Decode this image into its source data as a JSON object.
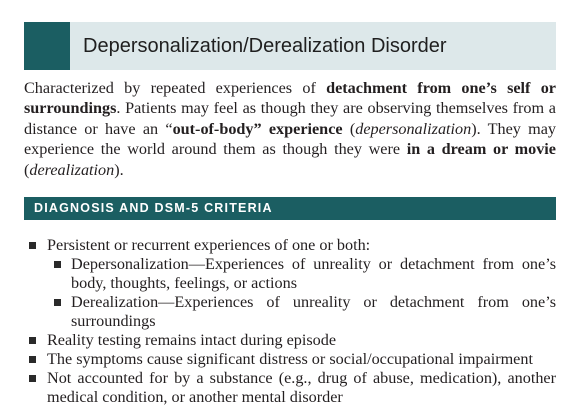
{
  "title": "Depersonalization/Derealization Disorder",
  "intro": {
    "p1": "Characterized by repeated experiences of ",
    "b1": "detachment from one’s self or surroundings",
    "p2": ". Patients may feel as though they are observing themselves from a distance or have an “",
    "b2": "out-of-body” experience",
    "p3": " (",
    "i1": "depersonalization",
    "p4": "). They may experience the world around them as though they were ",
    "b3": "in a dream or movie",
    "p5": " (",
    "i2": "derealization",
    "p6": ")."
  },
  "section_header": "DIAGNOSIS AND DSM-5 CRITERIA",
  "criteria": {
    "item1": "Persistent or recurrent experiences of one or both:",
    "sub1": "Depersonalization—Experiences of unreality or detachment from one’s body, thoughts, feelings, or actions",
    "sub2": "Derealization—Experiences of unreality or detachment from one’s surroundings",
    "item2": "Reality testing remains intact during episode",
    "item3": "The symptoms cause significant distress or social/occupational impairment",
    "item4": "Not accounted for by a substance (e.g., drug of abuse, medication), another medical condition, or another mental disorder"
  },
  "colors": {
    "accent": "#1b5e62",
    "title_background": "#dde8ea"
  }
}
